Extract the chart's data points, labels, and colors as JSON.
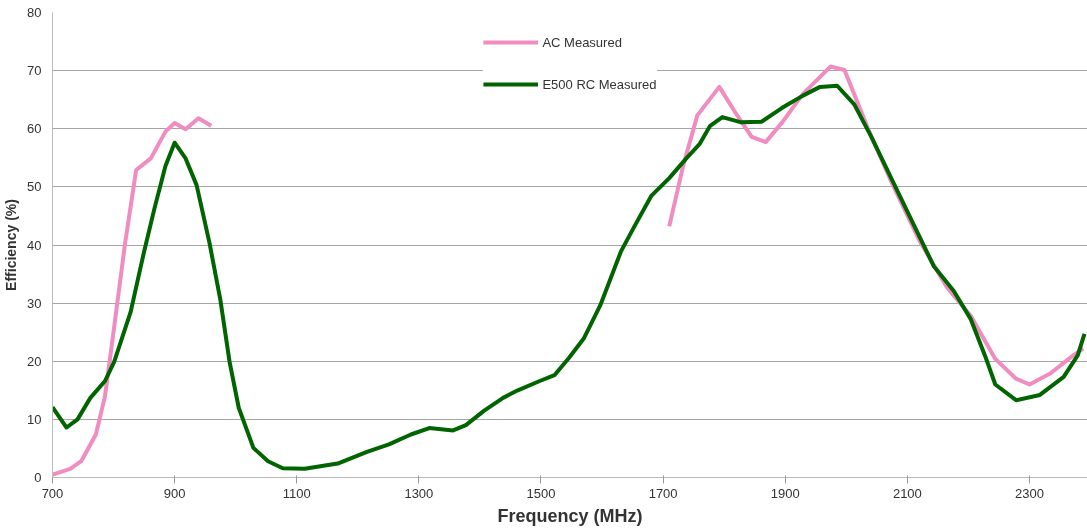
{
  "chart_data": {
    "type": "line",
    "xlabel": "Frequency (MHz)",
    "ylabel": "Efficiency (%)",
    "xlim": [
      700,
      2395
    ],
    "ylim": [
      0,
      80
    ],
    "xticks": [
      700,
      900,
      1100,
      1300,
      1500,
      1700,
      1900,
      2100,
      2300
    ],
    "yticks": [
      0,
      10,
      20,
      30,
      40,
      50,
      60,
      70,
      80
    ],
    "grid": "y",
    "legend": "top",
    "line_style": "solid",
    "marker": "none",
    "series": [
      {
        "name": "AC Measured",
        "color": "#f08cc0",
        "x": [
          700,
          729,
          747,
          771,
          786,
          801,
          819,
          837,
          861,
          885,
          900,
          918,
          939,
          960,
          1300,
          1710,
          1733,
          1756,
          1792,
          1817,
          1845,
          1868,
          1895,
          1929,
          1974,
          1997,
          2036,
          2075,
          2120,
          2165,
          2204,
          2244,
          2278,
          2300,
          2334,
          2368,
          2388
        ],
        "values": [
          0.5,
          1.5,
          2.8,
          7.4,
          14,
          25.9,
          40.4,
          52.9,
          54.9,
          59.5,
          61,
          59.9,
          61.8,
          60.5,
          null,
          43.2,
          53.7,
          62.3,
          67.2,
          63,
          58.6,
          57.7,
          61.1,
          66,
          70.7,
          70.1,
          59.9,
          50.6,
          40.7,
          32.7,
          27.8,
          20.4,
          17,
          16,
          17.9,
          20.7,
          22.2
        ]
      },
      {
        "name": "E500 RC Measured",
        "color": "#006400",
        "x": [
          700,
          723,
          741,
          762,
          786,
          801,
          828,
          849,
          867,
          885,
          900,
          918,
          936,
          957,
          975,
          990,
          1005,
          1029,
          1053,
          1077,
          1113,
          1167,
          1215,
          1251,
          1287,
          1317,
          1356,
          1377,
          1407,
          1438,
          1462,
          1498,
          1522,
          1546,
          1570,
          1597,
          1631,
          1653,
          1681,
          1710,
          1738,
          1760,
          1777,
          1797,
          1828,
          1861,
          1895,
          1929,
          1957,
          1985,
          2013,
          2041,
          2069,
          2103,
          2143,
          2176,
          2204,
          2227,
          2244,
          2278,
          2317,
          2356,
          2379,
          2390
        ],
        "values": [
          12.1,
          8.6,
          10,
          13.7,
          16.6,
          19.9,
          28.5,
          38.4,
          46.3,
          53.6,
          57.6,
          54.9,
          50.3,
          40.4,
          30.5,
          19.9,
          12,
          5.1,
          2.8,
          1.6,
          1.5,
          2.4,
          4.4,
          5.7,
          7.4,
          8.5,
          8.1,
          9,
          11.5,
          13.7,
          15,
          16.6,
          17.6,
          20.6,
          23.9,
          29.6,
          38.9,
          43.2,
          48.5,
          51.5,
          54.9,
          57.4,
          60.5,
          62,
          61.1,
          61.2,
          63.6,
          65.7,
          67.2,
          67.4,
          64.2,
          58.6,
          52.5,
          45.1,
          36.4,
          32.1,
          27.2,
          21,
          16,
          13.3,
          14.2,
          17.3,
          21,
          24.7
        ]
      }
    ]
  }
}
